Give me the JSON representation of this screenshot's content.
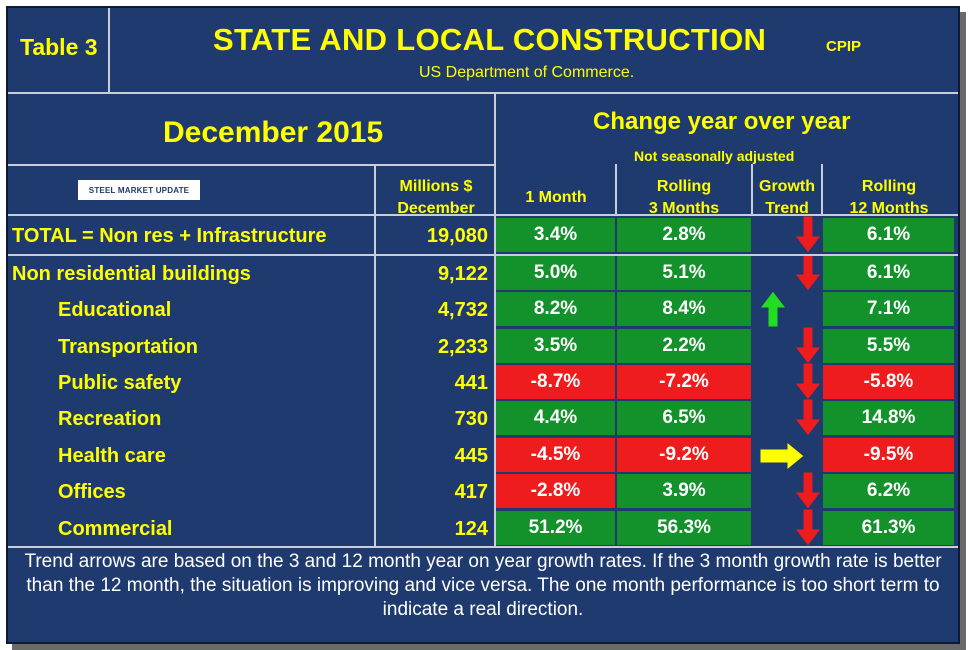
{
  "table_tag": "Table 3",
  "title": "STATE AND LOCAL CONSTRUCTION",
  "title_tag": "CPIP",
  "subtitle": "US Department of Commerce.",
  "period": "December 2015",
  "change_header": "Change year over year",
  "change_subheader": "Not seasonally adjusted",
  "logo_text": "STEEL MARKET UPDATE",
  "columns": {
    "millions_line1": "Millions $",
    "millions_line2": "December",
    "one_month": "1 Month",
    "rolling3_line1": "Rolling",
    "rolling3_line2": "3 Months",
    "growth_line1": "Growth",
    "growth_line2": "Trend",
    "rolling12_line1": "Rolling",
    "rolling12_line2": "12 Months"
  },
  "colors": {
    "background": "#1f3a6e",
    "positive": "#13912b",
    "negative": "#ee1c1c",
    "text": "#ffff00"
  },
  "rows": [
    {
      "label": "TOTAL = Non res + Infrastructure",
      "value": "19,080",
      "m1": "3.4%",
      "m1_color": "green",
      "r3": "2.8%",
      "r3_color": "green",
      "trend": "down",
      "r12": "6.1%",
      "r12_color": "green"
    },
    {
      "label": "Non residential buildings",
      "value": "9,122",
      "m1": "5.0%",
      "m1_color": "green",
      "r3": "5.1%",
      "r3_color": "green",
      "trend": "down",
      "r12": "6.1%",
      "r12_color": "green"
    },
    {
      "label": "Educational",
      "value": "4,732",
      "m1": "8.2%",
      "m1_color": "green",
      "r3": "8.4%",
      "r3_color": "green",
      "trend": "up",
      "r12": "7.1%",
      "r12_color": "green"
    },
    {
      "label": "Transportation",
      "value": "2,233",
      "m1": "3.5%",
      "m1_color": "green",
      "r3": "2.2%",
      "r3_color": "green",
      "trend": "down",
      "r12": "5.5%",
      "r12_color": "green"
    },
    {
      "label": "Public safety",
      "value": "441",
      "m1": "-8.7%",
      "m1_color": "red",
      "r3": "-7.2%",
      "r3_color": "red",
      "trend": "down",
      "r12": "-5.8%",
      "r12_color": "red"
    },
    {
      "label": "Recreation",
      "value": "730",
      "m1": "4.4%",
      "m1_color": "green",
      "r3": "6.5%",
      "r3_color": "green",
      "trend": "down",
      "r12": "14.8%",
      "r12_color": "green"
    },
    {
      "label": "Health care",
      "value": "445",
      "m1": "-4.5%",
      "m1_color": "red",
      "r3": "-9.2%",
      "r3_color": "red",
      "trend": "right",
      "r12": "-9.5%",
      "r12_color": "red"
    },
    {
      "label": "Offices",
      "value": "417",
      "m1": "-2.8%",
      "m1_color": "red",
      "r3": "3.9%",
      "r3_color": "green",
      "trend": "down",
      "r12": "6.2%",
      "r12_color": "green"
    },
    {
      "label": "Commercial",
      "value": "124",
      "m1": "51.2%",
      "m1_color": "green",
      "r3": "56.3%",
      "r3_color": "green",
      "trend": "down",
      "r12": "61.3%",
      "r12_color": "green"
    }
  ],
  "footnote": "Trend arrows are based on the 3 and 12 month year on year growth rates. If the 3 month growth rate is better than the 12 month, the situation is improving and vice versa. The one month performance is too short term to indicate a real direction."
}
